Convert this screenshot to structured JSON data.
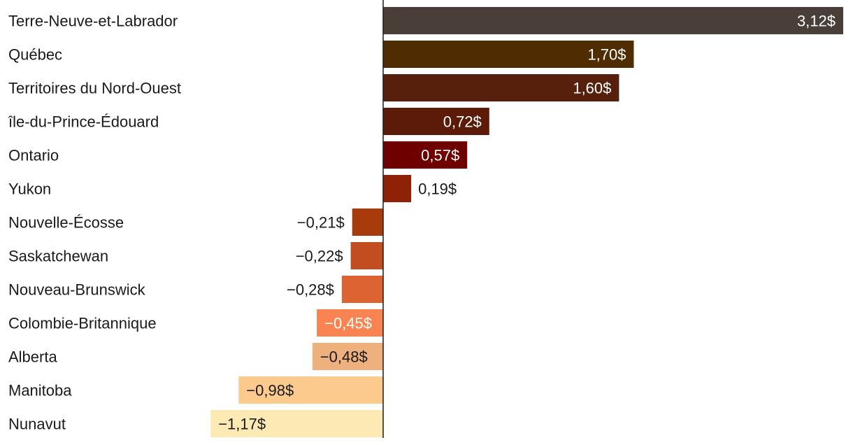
{
  "chart_data": {
    "type": "bar",
    "orientation": "horizontal",
    "title": "",
    "xlabel": "",
    "ylabel": "",
    "unit_suffix": "$",
    "categories": [
      "Terre-Neuve-et-Labrador",
      "Québec",
      "Territoires du Nord-Ouest",
      "île-du-Prince-Édouard",
      "Ontario",
      "Yukon",
      "Nouvelle-Écosse",
      "Saskatchewan",
      "Nouveau-Brunswick",
      "Colombie-Britannique",
      "Alberta",
      "Manitoba",
      "Nunavut"
    ],
    "values": [
      3.12,
      1.7,
      1.6,
      0.72,
      0.57,
      0.19,
      -0.21,
      -0.22,
      -0.28,
      -0.45,
      -0.48,
      -0.98,
      -1.17
    ],
    "value_labels": [
      "3,12$",
      "1,70$",
      "1,60$",
      "0,72$",
      "0,57$",
      "0,19$",
      "−0,21$",
      "−0,22$",
      "−0,28$",
      "−0,45$",
      "−0,48$",
      "−0,98$",
      "−1,17$"
    ],
    "colors": [
      "#4a3f38",
      "#4f2c02",
      "#56200d",
      "#5c1a08",
      "#6e0000",
      "#8f2106",
      "#a73b0c",
      "#c24d20",
      "#de6332",
      "#f98451",
      "#eeb07c",
      "#fdca8e",
      "#fde9b3"
    ],
    "label_colors": [
      "#ffffff",
      "#ffffff",
      "#ffffff",
      "#ffffff",
      "#ffffff",
      "#1a1a1a",
      "#1a1a1a",
      "#1a1a1a",
      "#1a1a1a",
      "#ffffff",
      "#1a1a1a",
      "#1a1a1a",
      "#1a1a1a"
    ],
    "axis_color": "#1a1a1a",
    "grid": false,
    "legend": "none"
  }
}
